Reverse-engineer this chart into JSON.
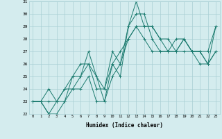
{
  "xlabel": "Humidex (Indice chaleur)",
  "x_values": [
    0,
    1,
    2,
    3,
    4,
    5,
    6,
    7,
    8,
    9,
    10,
    11,
    12,
    13,
    14,
    15,
    16,
    17,
    18,
    19,
    20,
    21,
    22,
    23
  ],
  "series": [
    [
      23,
      23,
      22,
      22,
      23,
      25,
      25,
      27,
      25,
      23,
      26,
      25,
      29,
      31,
      29,
      29,
      28,
      27,
      27,
      27,
      27,
      27,
      26,
      29
    ],
    [
      23,
      23,
      22,
      23,
      24,
      24,
      24,
      25,
      23,
      23,
      25,
      26,
      29,
      30,
      30,
      28,
      27,
      27,
      27,
      28,
      27,
      26,
      26,
      27
    ],
    [
      23,
      23,
      24,
      23,
      23,
      24,
      25,
      26,
      24,
      24,
      27,
      26,
      28,
      29,
      28,
      27,
      27,
      27,
      28,
      28,
      27,
      27,
      27,
      29
    ],
    [
      23,
      23,
      23,
      23,
      24,
      25,
      26,
      26,
      25,
      24,
      26,
      27,
      28,
      29,
      29,
      29,
      28,
      28,
      27,
      28,
      27,
      27,
      26,
      27
    ]
  ],
  "line_color": "#1a7a6e",
  "bg_color": "#d4ecee",
  "grid_color": "#a8cfd4",
  "ylim": [
    22,
    31
  ],
  "yticks": [
    22,
    23,
    24,
    25,
    26,
    27,
    28,
    29,
    30,
    31
  ],
  "marker": "+"
}
